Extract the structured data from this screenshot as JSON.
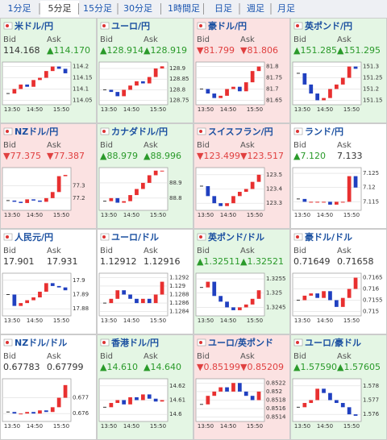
{
  "tabs": [
    "1分足",
    "5分足",
    "15分足",
    "30分足",
    "1時間足",
    "日足",
    "週足",
    "月足"
  ],
  "selected_tab": 1,
  "bid_label": "Bid",
  "ask_label": "Ask",
  "xticks": [
    "13:50",
    "14:50",
    "15:50"
  ],
  "tiles": [
    {
      "name": "米ドル/円",
      "bid": "114.168",
      "ask": "▲114.170",
      "background": "#e4f6e4",
      "yticks": [
        114.2,
        114.15,
        114.1,
        114.05
      ],
      "ylim": [
        114.03,
        114.22
      ],
      "prices": [
        114.08,
        114.1,
        114.12,
        114.11,
        114.14,
        114.15,
        114.18,
        114.2,
        114.19,
        114.17
      ]
    },
    {
      "name": "ユーロ/円",
      "bid": "▲128.914",
      "ask": "▲128.919",
      "background": "#e4f6e4",
      "yticks": [
        128.9,
        128.85,
        128.8,
        128.75
      ],
      "ylim": [
        128.73,
        128.93
      ],
      "prices": [
        128.8,
        128.79,
        128.77,
        128.8,
        128.82,
        128.84,
        128.83,
        128.86,
        128.9,
        128.91
      ]
    },
    {
      "name": "豪ドル/円",
      "bid": "▼81.799",
      "ask": "▼81.806",
      "background": "#fbe2e2",
      "yticks": [
        81.8,
        81.75,
        81.7,
        81.65
      ],
      "ylim": [
        81.63,
        81.82
      ],
      "prices": [
        81.7,
        81.68,
        81.66,
        81.67,
        81.7,
        81.71,
        81.69,
        81.73,
        81.78,
        81.8
      ]
    },
    {
      "name": "英ポンド/円",
      "bid": "▲151.285",
      "ask": "▲151.295",
      "background": "#e4f6e4",
      "yticks": [
        151.3,
        151.25,
        151.2,
        151.15
      ],
      "ylim": [
        151.13,
        151.32
      ],
      "prices": [
        151.27,
        151.22,
        151.18,
        151.15,
        151.16,
        151.2,
        151.22,
        151.25,
        151.3,
        151.29
      ]
    },
    {
      "name": "NZドル/円",
      "bid": "▼77.375",
      "ask": "▼77.387",
      "background": "#fbe2e2",
      "yticks": [
        77.3,
        77.2
      ],
      "ylim": [
        77.1,
        77.45
      ],
      "prices": [
        77.18,
        77.17,
        77.16,
        77.19,
        77.18,
        77.17,
        77.2,
        77.25,
        77.38,
        77.39
      ]
    },
    {
      "name": "カナダドル/円",
      "bid": "▲88.979",
      "ask": "▲88.996",
      "background": "#e4f6e4",
      "yticks": [
        88.9,
        88.8
      ],
      "ylim": [
        88.72,
        89.0
      ],
      "prices": [
        88.78,
        88.8,
        88.77,
        88.78,
        88.82,
        88.86,
        88.9,
        88.95,
        88.98,
        88.98
      ]
    },
    {
      "name": "スイスフラン/円",
      "bid": "▼123.499",
      "ask": "▼123.517",
      "background": "#fbe2e2",
      "yticks": [
        123.5,
        123.4,
        123.3
      ],
      "ylim": [
        123.25,
        123.55
      ],
      "prices": [
        123.42,
        123.35,
        123.3,
        123.28,
        123.3,
        123.35,
        123.38,
        123.4,
        123.45,
        123.5
      ]
    },
    {
      "name": "ランド/円",
      "bid": "▲7.120",
      "ask": "7.133",
      "background": "#ffffff",
      "yticks": [
        7.125,
        7.12,
        7.115
      ],
      "ylim": [
        7.112,
        7.127
      ],
      "prices": [
        7.116,
        7.115,
        7.115,
        7.115,
        7.115,
        7.114,
        7.115,
        7.115,
        7.124,
        7.12
      ]
    },
    {
      "name": "人民元/円",
      "bid": "17.901",
      "ask": "17.931",
      "background": "#ffffff",
      "yticks": [
        17.9,
        17.89,
        17.88
      ],
      "ylim": [
        17.875,
        17.905
      ],
      "prices": [
        17.89,
        17.882,
        17.884,
        17.886,
        17.888,
        17.892,
        17.898,
        17.896,
        17.895,
        17.893
      ]
    },
    {
      "name": "ユーロ/ドル",
      "bid": "1.12912",
      "ask": "1.12916",
      "background": "#ffffff",
      "yticks": [
        1.1292,
        1.129,
        1.1288,
        1.1286,
        1.1284
      ],
      "ylim": [
        1.1283,
        1.1293
      ],
      "prices": [
        1.1286,
        1.1287,
        1.1289,
        1.1288,
        1.1287,
        1.1286,
        1.1287,
        1.1286,
        1.1288,
        1.1291
      ]
    },
    {
      "name": "英ポンド/ドル",
      "bid": "▲1.32511",
      "ask": "▲1.32521",
      "background": "#e4f6e4",
      "yticks": [
        1.3255,
        1.325,
        1.3245
      ],
      "ylim": [
        1.3242,
        1.3257
      ],
      "prices": [
        1.3252,
        1.3254,
        1.3249,
        1.3247,
        1.3245,
        1.3244,
        1.3245,
        1.3246,
        1.3248,
        1.3251
      ]
    },
    {
      "name": "豪ドル/ドル",
      "bid": "0.71649",
      "ask": "0.71658",
      "background": "#ffffff",
      "yticks": [
        0.7165,
        0.716,
        0.7155,
        0.715
      ],
      "ylim": [
        0.7148,
        0.7167
      ],
      "prices": [
        0.7155,
        0.7157,
        0.7158,
        0.7156,
        0.7159,
        0.7155,
        0.7152,
        0.7156,
        0.716,
        0.7165
      ]
    },
    {
      "name": "NZドル/ドル",
      "bid": "0.67783",
      "ask": "0.67799",
      "background": "#ffffff",
      "yticks": [
        0.677,
        0.676
      ],
      "ylim": [
        0.6755,
        0.6782
      ],
      "prices": [
        0.6761,
        0.676,
        0.676,
        0.6761,
        0.676,
        0.6762,
        0.6761,
        0.6764,
        0.677,
        0.6778
      ]
    },
    {
      "name": "香港ドル/円",
      "bid": "▲14.610",
      "ask": "▲14.640",
      "background": "#e4f6e4",
      "yticks": [
        14.62,
        14.61,
        14.6
      ],
      "ylim": [
        14.595,
        14.625
      ],
      "prices": [
        14.605,
        14.608,
        14.61,
        14.607,
        14.612,
        14.61,
        14.614,
        14.611,
        14.609,
        14.61
      ]
    },
    {
      "name": "ユーロ/英ポンド",
      "bid": "▼0.85199",
      "ask": "▼0.85209",
      "background": "#fbe2e2",
      "yticks": [
        0.8522,
        0.852,
        0.8518,
        0.8516,
        0.8514
      ],
      "ylim": [
        0.8513,
        0.8523
      ],
      "prices": [
        0.8517,
        0.8519,
        0.852,
        0.8521,
        0.852,
        0.8522,
        0.852,
        0.8519,
        0.8518,
        0.852
      ]
    },
    {
      "name": "ユーロ/豪ドル",
      "bid": "▲1.57590",
      "ask": "▲1.57605",
      "background": "#e4f6e4",
      "yticks": [
        1.578,
        1.577,
        1.576
      ],
      "ylim": [
        1.5755,
        1.5785
      ],
      "prices": [
        1.5765,
        1.5768,
        1.577,
        1.5778,
        1.5775,
        1.577,
        1.5768,
        1.5765,
        1.576,
        1.5759
      ]
    }
  ]
}
